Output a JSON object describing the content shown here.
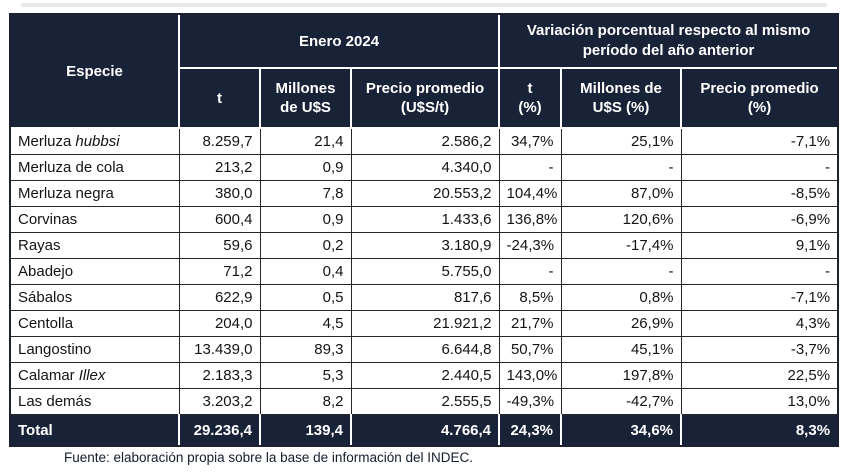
{
  "source_note": "Fuente: elaboración propia sobre la base de información del INDEC.",
  "colors": {
    "header_bg": "#192338",
    "header_text": "#ffffff",
    "grid_line": "#262626",
    "header_divider": "#ffffff",
    "body_text": "#141414"
  },
  "table": {
    "col_especie": "Especie",
    "group_enero": "Enero 2024",
    "group_variacion": "Variación porcentual respecto al mismo período del año anterior",
    "subheaders": [
      {
        "line1": "t",
        "line2": ""
      },
      {
        "line1": "Millones",
        "line2": "de U$S"
      },
      {
        "line1": "Precio promedio",
        "line2": "(U$S/t)"
      },
      {
        "line1": "t",
        "line2": "(%)"
      },
      {
        "line1": "Millones de",
        "line2": "U$S (%)"
      },
      {
        "line1": "Precio promedio",
        "line2": "(%)"
      }
    ],
    "rows": [
      {
        "name": "Merluza",
        "name_italic": "hubbsi",
        "t": "8.259,7",
        "musd": "21,4",
        "precio": "2.586,2",
        "var_t": "34,7%",
        "var_musd": "25,1%",
        "var_precio": "-7,1%"
      },
      {
        "name": "Merluza de cola",
        "name_italic": "",
        "t": "213,2",
        "musd": "0,9",
        "precio": "4.340,0",
        "var_t": "-",
        "var_musd": "-",
        "var_precio": "-"
      },
      {
        "name": "Merluza negra",
        "name_italic": "",
        "t": "380,0",
        "musd": "7,8",
        "precio": "20.553,2",
        "var_t": "104,4%",
        "var_musd": "87,0%",
        "var_precio": "-8,5%"
      },
      {
        "name": "Corvinas",
        "name_italic": "",
        "t": "600,4",
        "musd": "0,9",
        "precio": "1.433,6",
        "var_t": "136,8%",
        "var_musd": "120,6%",
        "var_precio": "-6,9%"
      },
      {
        "name": "Rayas",
        "name_italic": "",
        "t": "59,6",
        "musd": "0,2",
        "precio": "3.180,9",
        "var_t": "-24,3%",
        "var_musd": "-17,4%",
        "var_precio": "9,1%"
      },
      {
        "name": "Abadejo",
        "name_italic": "",
        "t": "71,2",
        "musd": "0,4",
        "precio": "5.755,0",
        "var_t": "-",
        "var_musd": "-",
        "var_precio": "-"
      },
      {
        "name": "Sábalos",
        "name_italic": "",
        "t": "622,9",
        "musd": "0,5",
        "precio": "817,6",
        "var_t": "8,5%",
        "var_musd": "0,8%",
        "var_precio": "-7,1%"
      },
      {
        "name": "Centolla",
        "name_italic": "",
        "t": "204,0",
        "musd": "4,5",
        "precio": "21.921,2",
        "var_t": "21,7%",
        "var_musd": "26,9%",
        "var_precio": "4,3%"
      },
      {
        "name": "Langostino",
        "name_italic": "",
        "t": "13.439,0",
        "musd": "89,3",
        "precio": "6.644,8",
        "var_t": "50,7%",
        "var_musd": "45,1%",
        "var_precio": "-3,7%"
      },
      {
        "name": "Calamar",
        "name_italic": "Illex",
        "t": "2.183,3",
        "musd": "5,3",
        "precio": "2.440,5",
        "var_t": "143,0%",
        "var_musd": "197,8%",
        "var_precio": "22,5%"
      },
      {
        "name": "Las demás",
        "name_italic": "",
        "t": "3.203,2",
        "musd": "8,2",
        "precio": "2.555,5",
        "var_t": "-49,3%",
        "var_musd": "-42,7%",
        "var_precio": "13,0%"
      }
    ],
    "total": {
      "label": "Total",
      "t": "29.236,4",
      "musd": "139,4",
      "precio": "4.766,4",
      "var_t": "24,3%",
      "var_musd": "34,6%",
      "var_precio": "8,3%"
    }
  }
}
